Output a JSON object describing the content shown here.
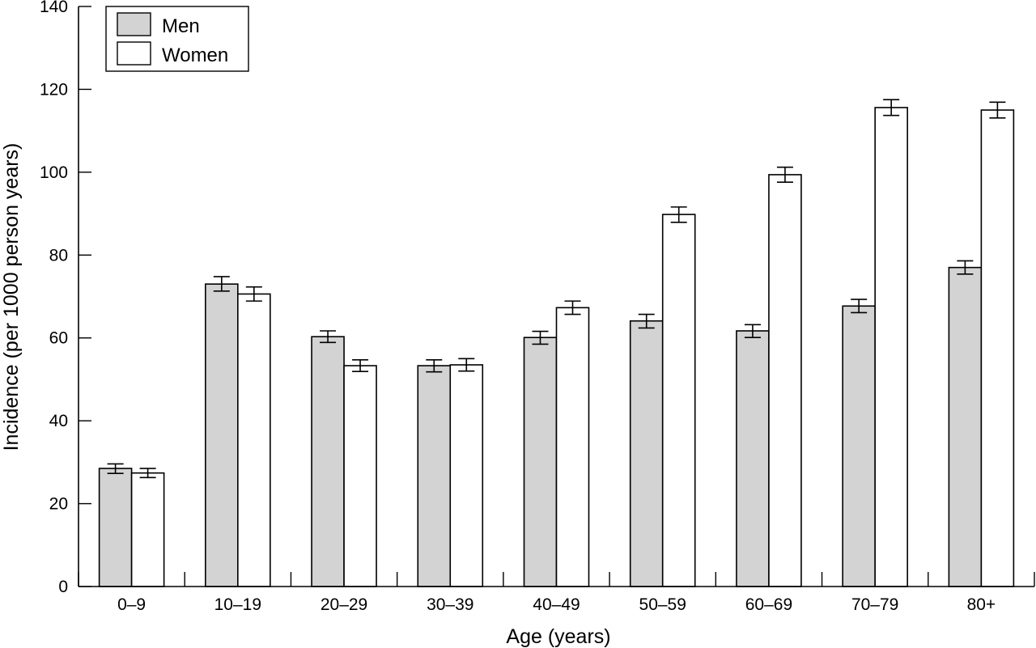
{
  "chart_data": {
    "type": "bar",
    "xlabel": "Age (years)",
    "ylabel": "Incidence (per 1000 person years)",
    "ylim": [
      0,
      140
    ],
    "yticks": [
      0,
      20,
      40,
      60,
      80,
      100,
      120,
      140
    ],
    "grid": false,
    "legend_position": "top-left",
    "categories": [
      "0–9",
      "10–19",
      "20–29",
      "30–39",
      "40–49",
      "50–59",
      "60–69",
      "70–79",
      "80+"
    ],
    "series": [
      {
        "name": "Men",
        "color": "#d3d3d3",
        "values": [
          28.5,
          73.0,
          60.3,
          53.3,
          60.1,
          64.1,
          61.7,
          67.7,
          77.0
        ],
        "error_low": [
          27.3,
          71.3,
          58.9,
          51.8,
          58.5,
          62.4,
          60.1,
          66.1,
          75.4
        ],
        "error_high": [
          29.6,
          74.8,
          61.7,
          54.7,
          61.6,
          65.7,
          63.2,
          69.3,
          78.6
        ]
      },
      {
        "name": "Women",
        "color": "#ffffff",
        "values": [
          27.4,
          70.6,
          53.3,
          53.5,
          67.3,
          89.8,
          99.4,
          115.6,
          115.0
        ],
        "error_low": [
          26.3,
          68.9,
          51.9,
          52.0,
          65.7,
          87.9,
          97.6,
          113.7,
          113.1
        ],
        "error_high": [
          28.5,
          72.3,
          54.7,
          55.0,
          68.9,
          91.6,
          101.2,
          117.5,
          116.9
        ]
      }
    ]
  }
}
